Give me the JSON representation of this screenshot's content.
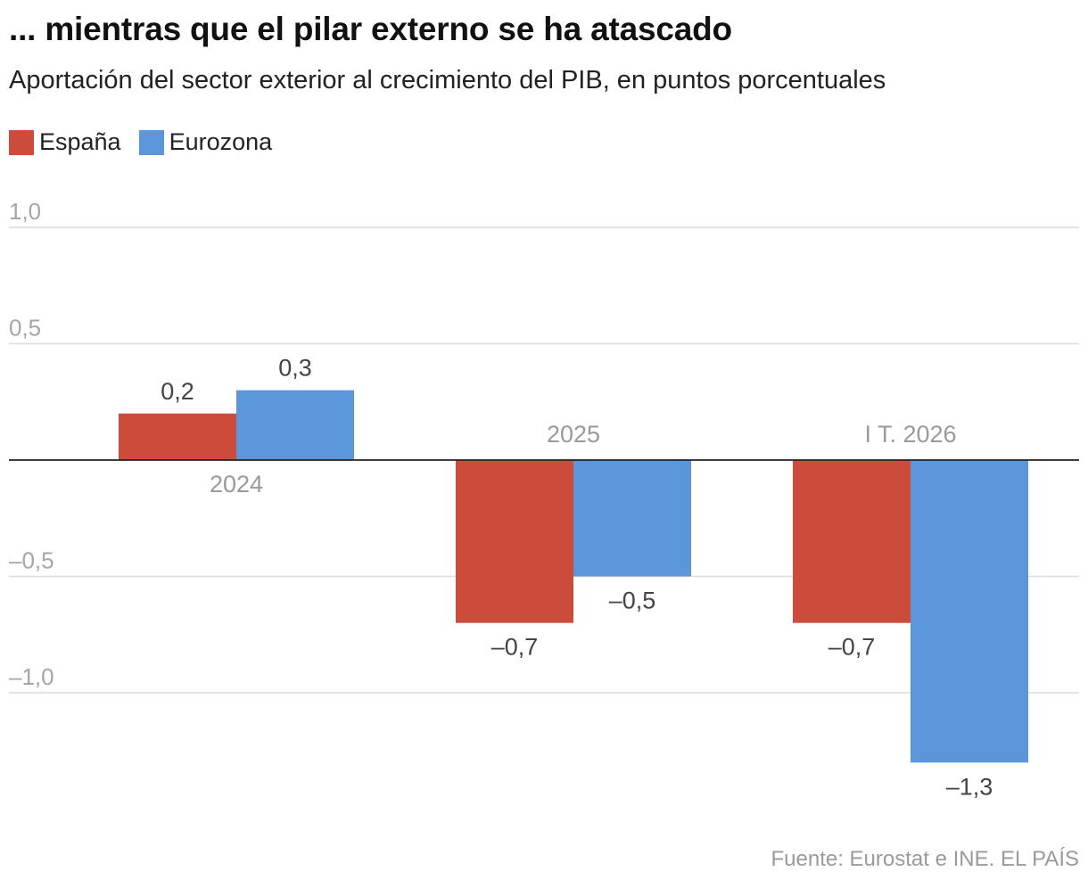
{
  "header": {
    "title": "... mientras que el pilar externo se ha atascado",
    "subtitle": "Aportación del sector exterior al crecimiento del PIB, en puntos porcentuales"
  },
  "legend": [
    {
      "name": "España",
      "color": "#cc4b3b"
    },
    {
      "name": "Eurozona",
      "color": "#5b96db"
    }
  ],
  "chart_data": {
    "type": "bar",
    "categories": [
      "2024",
      "2025",
      "I T. 2026"
    ],
    "series": [
      {
        "name": "España",
        "values": [
          0.2,
          -0.7,
          -0.7
        ],
        "labels": [
          "0,2",
          "–0,7",
          "–0,7"
        ],
        "color": "#cc4b3b"
      },
      {
        "name": "Eurozona",
        "values": [
          0.3,
          -0.5,
          -1.3
        ],
        "labels": [
          "0,3",
          "–0,5",
          "–1,3"
        ],
        "color": "#5b96db"
      }
    ],
    "ylim": [
      -1.3,
      1.0
    ],
    "yticks": [
      1.0,
      0.5,
      -0.5,
      -1.0
    ],
    "ytick_labels": [
      "1,0",
      "0,5",
      "–0,5",
      "–1,0"
    ],
    "grid": true
  },
  "footer": {
    "source": "Fuente: Eurostat e INE. EL PAÍS"
  }
}
